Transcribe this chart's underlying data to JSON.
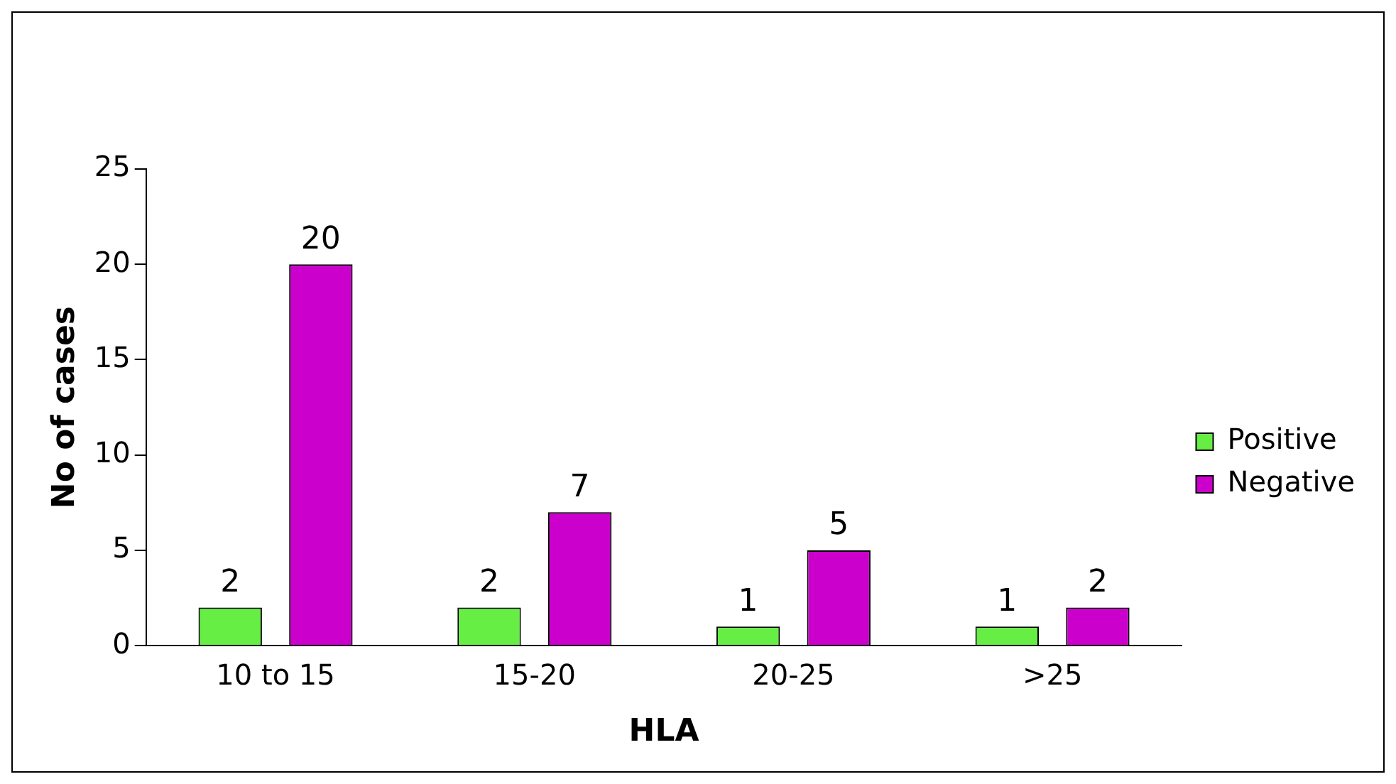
{
  "chart_data": {
    "type": "bar",
    "xlabel": "HLA",
    "ylabel": "No of cases",
    "categories": [
      "10 to 15",
      "15-20",
      "20-25",
      ">25"
    ],
    "series": [
      {
        "name": "Positive",
        "color": "#66ee44",
        "values": [
          2,
          2,
          1,
          1
        ]
      },
      {
        "name": "Negative",
        "color": "#cc00cc",
        "values": [
          20,
          7,
          5,
          2
        ]
      }
    ],
    "ylim": [
      0,
      25
    ],
    "yticks": [
      0,
      5,
      10,
      15,
      20,
      25
    ],
    "grid": false,
    "legend": "right",
    "data_labels": true
  }
}
